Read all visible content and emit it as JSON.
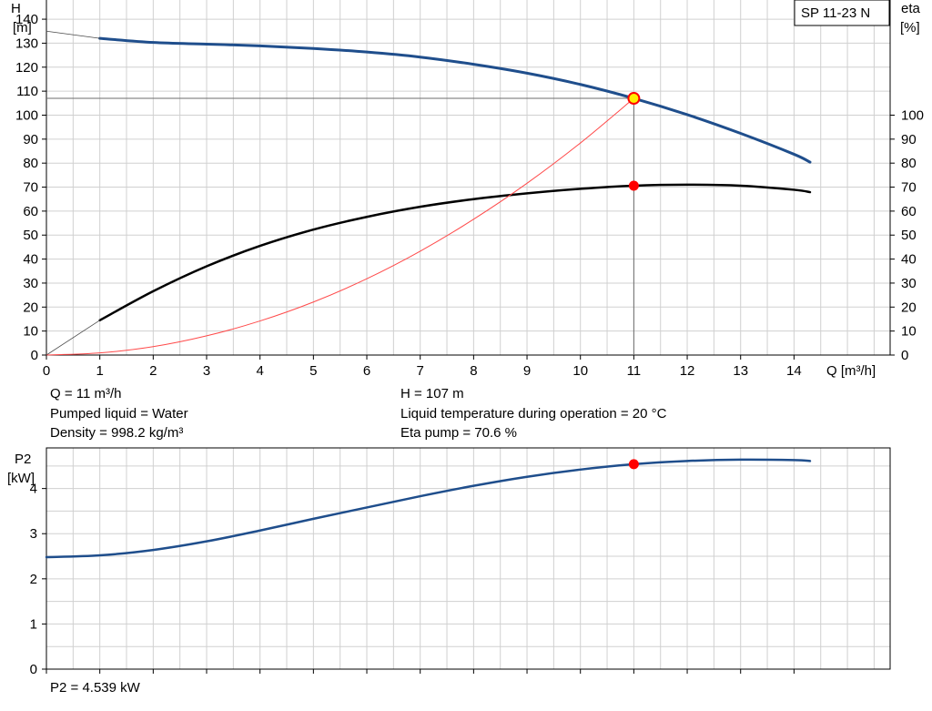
{
  "pump_label": "SP 11-23 N",
  "info": {
    "q": "Q = 11 m³/h",
    "liquid": "Pumped liquid = Water",
    "density": "Density = 998.2 kg/m³",
    "h": "H = 107 m",
    "temp": "Liquid temperature during operation = 20 °C",
    "eta": "Eta pump = 70.6 %",
    "p2": "P2 = 4.539 kW"
  },
  "colors": {
    "head_curve": "#1f4e8c",
    "eta_curve": "#000000",
    "system_curve": "#ff4a4a",
    "duty_point": "#ff0000",
    "duty_point_head": "#ffee00",
    "grid": "#d0d0d0",
    "axis": "#000000"
  },
  "chart_data": [
    {
      "type": "line",
      "title": "",
      "xlabel": "Q [m³/h]",
      "ylabel": "H\n[m]",
      "y2label": "eta\n[%]",
      "xlim": [
        0,
        15.8
      ],
      "ylim": [
        0,
        148
      ],
      "y2lim": [
        0,
        148
      ],
      "x_ticks": [
        0,
        1,
        2,
        3,
        4,
        5,
        6,
        7,
        8,
        9,
        10,
        11,
        12,
        13,
        14
      ],
      "y_ticks": [
        0,
        10,
        20,
        30,
        40,
        50,
        60,
        70,
        80,
        90,
        100,
        110,
        120,
        130,
        140
      ],
      "y2_ticks": [
        0,
        10,
        20,
        30,
        40,
        50,
        60,
        70,
        80,
        90,
        100
      ],
      "grid": true,
      "series": [
        {
          "name": "H",
          "axis": "left",
          "x": [
            1,
            2,
            3,
            4,
            5,
            6,
            7,
            8,
            9,
            10,
            11,
            12,
            13,
            14,
            14.3
          ],
          "values": [
            132,
            130.3,
            129.6,
            128.9,
            127.8,
            126.3,
            124.2,
            121.2,
            117.5,
            112.8,
            107,
            100.2,
            92.4,
            83.7,
            80.4
          ]
        },
        {
          "name": "H extrapolated",
          "axis": "left",
          "x": [
            0,
            1
          ],
          "values": [
            135,
            132
          ]
        },
        {
          "name": "eta",
          "axis": "right",
          "x": [
            1,
            2,
            3,
            4,
            5,
            6,
            7,
            8,
            9,
            10,
            11,
            12,
            13,
            14,
            14.3
          ],
          "values": [
            14.5,
            26.6,
            37,
            45.5,
            52.3,
            57.6,
            61.8,
            65,
            67.4,
            69.3,
            70.6,
            71,
            70.6,
            68.9,
            67.9
          ]
        },
        {
          "name": "eta extrapolated",
          "axis": "right",
          "x": [
            0,
            1
          ],
          "values": [
            0,
            14.5
          ]
        },
        {
          "name": "system curve",
          "axis": "left",
          "x": [
            0,
            1,
            2,
            3,
            4,
            5,
            6,
            7,
            8,
            9,
            10,
            11
          ],
          "values": [
            0,
            0.9,
            3.5,
            8,
            14.2,
            22.1,
            31.8,
            43.3,
            56.6,
            71.6,
            88.4,
            107
          ]
        }
      ],
      "duty_points": [
        {
          "x": 11,
          "y": 107,
          "axis": "left"
        },
        {
          "x": 11,
          "y": 70.6,
          "axis": "right"
        }
      ]
    },
    {
      "type": "line",
      "title": "",
      "xlabel": "",
      "ylabel": "P2\n[kW]",
      "xlim": [
        0,
        15.8
      ],
      "ylim": [
        0,
        4.9
      ],
      "y_ticks": [
        0,
        1,
        2,
        3,
        4
      ],
      "grid": true,
      "series": [
        {
          "name": "P2",
          "x": [
            0,
            1,
            2,
            3,
            4,
            5,
            6,
            7,
            8,
            9,
            10,
            11,
            12,
            13,
            14,
            14.3
          ],
          "values": [
            2.48,
            2.52,
            2.64,
            2.83,
            3.07,
            3.33,
            3.58,
            3.83,
            4.06,
            4.26,
            4.42,
            4.539,
            4.61,
            4.64,
            4.63,
            4.61
          ]
        }
      ],
      "duty_points": [
        {
          "x": 11,
          "y": 4.539
        }
      ]
    }
  ]
}
